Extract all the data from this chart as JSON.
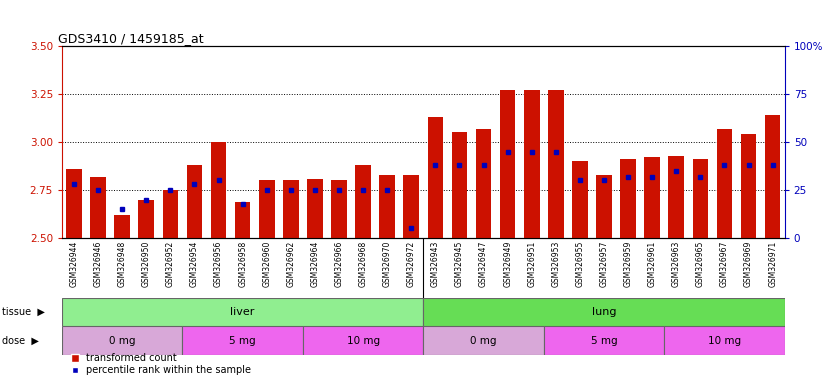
{
  "title": "GDS3410 / 1459185_at",
  "samples": [
    "GSM326944",
    "GSM326946",
    "GSM326948",
    "GSM326950",
    "GSM326952",
    "GSM326954",
    "GSM326956",
    "GSM326958",
    "GSM326960",
    "GSM326962",
    "GSM326964",
    "GSM326966",
    "GSM326968",
    "GSM326970",
    "GSM326972",
    "GSM326943",
    "GSM326945",
    "GSM326947",
    "GSM326949",
    "GSM326951",
    "GSM326953",
    "GSM326955",
    "GSM326957",
    "GSM326959",
    "GSM326961",
    "GSM326963",
    "GSM326965",
    "GSM326967",
    "GSM326969",
    "GSM326971"
  ],
  "red_values": [
    2.86,
    2.82,
    2.62,
    2.7,
    2.75,
    2.88,
    3.0,
    2.69,
    2.8,
    2.8,
    2.81,
    2.8,
    2.88,
    2.83,
    2.83,
    3.13,
    3.05,
    3.07,
    3.27,
    3.27,
    3.27,
    2.9,
    2.83,
    2.91,
    2.92,
    2.93,
    2.91,
    3.07,
    3.04,
    3.14
  ],
  "blue_percentiles": [
    28,
    25,
    15,
    20,
    25,
    28,
    30,
    18,
    25,
    25,
    25,
    25,
    25,
    25,
    5,
    38,
    38,
    38,
    45,
    45,
    45,
    30,
    30,
    32,
    32,
    35,
    32,
    38,
    38,
    38
  ],
  "ymin": 2.5,
  "ymax": 3.5,
  "yticks_left": [
    2.5,
    2.75,
    3.0,
    3.25,
    3.5
  ],
  "yticks_right": [
    0,
    25,
    50,
    75,
    100
  ],
  "grid_lines": [
    2.75,
    3.0,
    3.25
  ],
  "bar_color": "#CC1100",
  "dot_color": "#0000BB",
  "plot_bg": "#ffffff",
  "xtick_bg": "#D8D8D8",
  "left_tick_color": "#CC1100",
  "right_tick_color": "#0000BB",
  "legend_red": "transformed count",
  "legend_blue": "percentile rank within the sample",
  "tissue_colors": [
    "#90EE90",
    "#66DD66"
  ],
  "dose_colors_light": "#D8A8D8",
  "dose_colors_dark": "#EE66EE"
}
